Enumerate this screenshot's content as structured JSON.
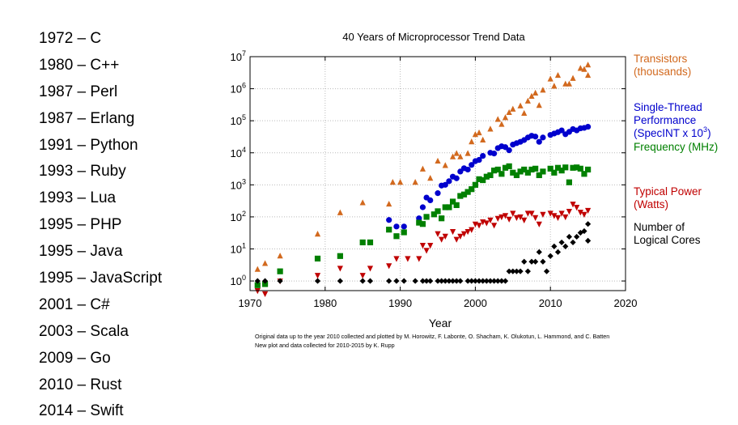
{
  "languages": [
    "1972 – C",
    "1980 – C++",
    "1987 – Perl",
    "1987 – Erlang",
    "1991 – Python",
    "1993 – Ruby",
    "1993 – Lua",
    "1995 – PHP",
    "1995 – Java",
    "1995 – JavaScript",
    "2001 – C#",
    "2003 – Scala",
    "2009 – Go",
    "2010 – Rust",
    "2014 – Swift"
  ],
  "chart_data": {
    "type": "scatter",
    "title": "40 Years of Microprocessor Trend Data",
    "xlabel": "Year",
    "ylabel": "",
    "xlim": [
      1970,
      2020
    ],
    "ylim": [
      0.5,
      10000000
    ],
    "y_scale": "log",
    "x_ticks": [
      "1970",
      "1980",
      "1990",
      "2000",
      "2010",
      "2020"
    ],
    "y_ticks": [
      {
        "base": "10",
        "exp": "0"
      },
      {
        "base": "10",
        "exp": "1"
      },
      {
        "base": "10",
        "exp": "2"
      },
      {
        "base": "10",
        "exp": "3"
      },
      {
        "base": "10",
        "exp": "4"
      },
      {
        "base": "10",
        "exp": "5"
      },
      {
        "base": "10",
        "exp": "6"
      },
      {
        "base": "10",
        "exp": "7"
      }
    ],
    "grid": true,
    "legend_position": "right",
    "footnote": [
      "Original data up to the year 2010 collected and plotted by M. Horowitz, F. Labonte, O. Shacham, K. Olukotun, L. Hammond, and C. Batten",
      "New plot and data collected for 2010-2015 by K. Rupp"
    ],
    "series": [
      {
        "name": "Transistors (thousands)",
        "legend_lines": [
          "Transistors",
          "(thousands)"
        ],
        "marker": "triangle-up",
        "color": "#d2691e",
        "points": [
          [
            1971,
            2.3
          ],
          [
            1972,
            3.5
          ],
          [
            1974,
            6
          ],
          [
            1979,
            29
          ],
          [
            1982,
            134
          ],
          [
            1985,
            275
          ],
          [
            1988.5,
            250
          ],
          [
            1989,
            1200
          ],
          [
            1990,
            1200
          ],
          [
            1992,
            1200
          ],
          [
            1993,
            3100
          ],
          [
            1994,
            1600
          ],
          [
            1995,
            5500
          ],
          [
            1996,
            4000
          ],
          [
            1997,
            7500
          ],
          [
            1997.5,
            9500
          ],
          [
            1998,
            7500
          ],
          [
            1999,
            9500
          ],
          [
            1999.5,
            22000
          ],
          [
            2000,
            37000
          ],
          [
            2000.5,
            42000
          ],
          [
            2001,
            25000
          ],
          [
            2002,
            55000
          ],
          [
            2003,
            110000
          ],
          [
            2003.5,
            77000
          ],
          [
            2004,
            125000
          ],
          [
            2004.5,
            180000
          ],
          [
            2005,
            230000
          ],
          [
            2006,
            290000
          ],
          [
            2006.5,
            170000
          ],
          [
            2007,
            410000
          ],
          [
            2007.5,
            580000
          ],
          [
            2008,
            730000
          ],
          [
            2008.5,
            300000
          ],
          [
            2009,
            900000
          ],
          [
            2010,
            2000000
          ],
          [
            2010.5,
            1200000
          ],
          [
            2011,
            2600000
          ],
          [
            2012,
            1400000
          ],
          [
            2012.5,
            1400000
          ],
          [
            2013,
            2100000
          ],
          [
            2014,
            4300000
          ],
          [
            2014.5,
            4000000
          ],
          [
            2015,
            5500000
          ],
          [
            2015,
            2600000
          ]
        ]
      },
      {
        "name": "Single-Thread Performance (SpecINT x 10^3)",
        "legend_lines": [
          "Single-Thread",
          "Performance",
          "(SpecINT x 10",
          "3",
          ")"
        ],
        "marker": "circle",
        "color": "#0000cd",
        "points": [
          [
            1988.5,
            80
          ],
          [
            1989.5,
            50
          ],
          [
            1990.5,
            50
          ],
          [
            1992.5,
            90
          ],
          [
            1993,
            200
          ],
          [
            1993.5,
            400
          ],
          [
            1994,
            330
          ],
          [
            1995,
            550
          ],
          [
            1995.5,
            950
          ],
          [
            1996,
            1000
          ],
          [
            1996.5,
            1300
          ],
          [
            1997,
            1800
          ],
          [
            1997.5,
            1600
          ],
          [
            1998,
            2600
          ],
          [
            1998.5,
            3300
          ],
          [
            1999,
            3000
          ],
          [
            1999.5,
            4200
          ],
          [
            2000,
            5500
          ],
          [
            2000.5,
            6000
          ],
          [
            2001,
            8000
          ],
          [
            2002,
            10000
          ],
          [
            2002.5,
            9500
          ],
          [
            2003,
            14000
          ],
          [
            2003.5,
            16000
          ],
          [
            2004,
            15000
          ],
          [
            2004.5,
            12000
          ],
          [
            2005,
            18000
          ],
          [
            2005.5,
            20000
          ],
          [
            2006,
            22000
          ],
          [
            2006.5,
            25000
          ],
          [
            2007,
            30000
          ],
          [
            2007.5,
            34000
          ],
          [
            2008,
            32000
          ],
          [
            2008.5,
            22000
          ],
          [
            2009,
            30000
          ],
          [
            2010,
            36000
          ],
          [
            2010.5,
            40000
          ],
          [
            2011,
            44000
          ],
          [
            2011.5,
            50000
          ],
          [
            2012,
            38000
          ],
          [
            2012.5,
            45000
          ],
          [
            2013,
            55000
          ],
          [
            2013.5,
            50000
          ],
          [
            2014,
            58000
          ],
          [
            2014.5,
            60000
          ],
          [
            2015,
            65000
          ]
        ]
      },
      {
        "name": "Frequency (MHz)",
        "legend_lines": [
          "Frequency (MHz)"
        ],
        "marker": "square",
        "color": "#008000",
        "points": [
          [
            1971,
            0.74
          ],
          [
            1972,
            0.8
          ],
          [
            1974,
            2
          ],
          [
            1979,
            5
          ],
          [
            1982,
            6
          ],
          [
            1985,
            16
          ],
          [
            1986,
            16
          ],
          [
            1988.5,
            40
          ],
          [
            1989.5,
            25
          ],
          [
            1990.5,
            33
          ],
          [
            1992.5,
            66
          ],
          [
            1993,
            60
          ],
          [
            1993.5,
            100
          ],
          [
            1994.5,
            120
          ],
          [
            1995,
            150
          ],
          [
            1995.5,
            90
          ],
          [
            1996,
            200
          ],
          [
            1996.5,
            200
          ],
          [
            1997,
            300
          ],
          [
            1997.5,
            233
          ],
          [
            1998,
            450
          ],
          [
            1998.5,
            500
          ],
          [
            1999,
            600
          ],
          [
            1999.5,
            733
          ],
          [
            2000,
            1000
          ],
          [
            2000.5,
            1500
          ],
          [
            2001,
            1400
          ],
          [
            2001.5,
            1800
          ],
          [
            2002,
            2000
          ],
          [
            2002.5,
            2800
          ],
          [
            2003,
            3000
          ],
          [
            2003.5,
            2200
          ],
          [
            2004,
            3400
          ],
          [
            2004.5,
            3800
          ],
          [
            2005,
            2400
          ],
          [
            2005.5,
            2000
          ],
          [
            2006,
            2600
          ],
          [
            2006.5,
            3000
          ],
          [
            2007,
            2400
          ],
          [
            2007.5,
            3000
          ],
          [
            2008,
            3200
          ],
          [
            2008.5,
            2000
          ],
          [
            2009,
            2600
          ],
          [
            2010,
            3200
          ],
          [
            2010.5,
            2400
          ],
          [
            2011,
            3400
          ],
          [
            2011.5,
            2800
          ],
          [
            2012,
            3500
          ],
          [
            2012.5,
            1200
          ],
          [
            2013,
            3400
          ],
          [
            2013.5,
            3500
          ],
          [
            2014,
            3200
          ],
          [
            2014.5,
            2200
          ],
          [
            2015,
            3000
          ]
        ]
      },
      {
        "name": "Typical Power (Watts)",
        "legend_lines": [
          "Typical Power",
          "(Watts)"
        ],
        "marker": "triangle-down",
        "color": "#c00000",
        "points": [
          [
            1971,
            0.5
          ],
          [
            1972,
            0.4
          ],
          [
            1974,
            1
          ],
          [
            1979,
            1.5
          ],
          [
            1982,
            2.5
          ],
          [
            1985,
            1.5
          ],
          [
            1986,
            2.5
          ],
          [
            1988.5,
            3
          ],
          [
            1989.5,
            5
          ],
          [
            1991,
            5
          ],
          [
            1992.5,
            5
          ],
          [
            1993,
            13
          ],
          [
            1993.5,
            9
          ],
          [
            1994,
            13
          ],
          [
            1995,
            30
          ],
          [
            1995.5,
            20
          ],
          [
            1996,
            25
          ],
          [
            1997,
            35
          ],
          [
            1997.5,
            20
          ],
          [
            1998,
            25
          ],
          [
            1998.5,
            30
          ],
          [
            1999,
            35
          ],
          [
            1999.5,
            40
          ],
          [
            2000,
            60
          ],
          [
            2000.5,
            55
          ],
          [
            2001,
            70
          ],
          [
            2001.5,
            65
          ],
          [
            2002,
            80
          ],
          [
            2002.5,
            55
          ],
          [
            2003,
            90
          ],
          [
            2003.5,
            100
          ],
          [
            2004,
            110
          ],
          [
            2004.5,
            85
          ],
          [
            2005,
            130
          ],
          [
            2005.5,
            95
          ],
          [
            2006,
            100
          ],
          [
            2006.5,
            80
          ],
          [
            2007,
            130
          ],
          [
            2007.5,
            130
          ],
          [
            2008,
            95
          ],
          [
            2008.5,
            60
          ],
          [
            2009,
            120
          ],
          [
            2010,
            130
          ],
          [
            2010.5,
            110
          ],
          [
            2011,
            95
          ],
          [
            2011.5,
            130
          ],
          [
            2012,
            100
          ],
          [
            2012.5,
            150
          ],
          [
            2013,
            250
          ],
          [
            2013.5,
            200
          ],
          [
            2014,
            140
          ],
          [
            2014.5,
            120
          ],
          [
            2015,
            160
          ]
        ]
      },
      {
        "name": "Number of Logical Cores",
        "legend_lines": [
          "Number of",
          "Logical Cores"
        ],
        "marker": "diamond",
        "color": "#000000",
        "points": [
          [
            1971,
            1
          ],
          [
            1972,
            1
          ],
          [
            1974,
            1
          ],
          [
            1979,
            1
          ],
          [
            1982,
            1
          ],
          [
            1985,
            1
          ],
          [
            1986,
            1
          ],
          [
            1988.5,
            1
          ],
          [
            1989.5,
            1
          ],
          [
            1990.5,
            1
          ],
          [
            1992,
            1
          ],
          [
            1993,
            1
          ],
          [
            1993.5,
            1
          ],
          [
            1994,
            1
          ],
          [
            1995,
            1
          ],
          [
            1995.5,
            1
          ],
          [
            1996,
            1
          ],
          [
            1996.5,
            1
          ],
          [
            1997,
            1
          ],
          [
            1997.5,
            1
          ],
          [
            1998,
            1
          ],
          [
            1999,
            1
          ],
          [
            1999.5,
            1
          ],
          [
            2000,
            1
          ],
          [
            2000.5,
            1
          ],
          [
            2001,
            1
          ],
          [
            2001.5,
            1
          ],
          [
            2002,
            1
          ],
          [
            2002.5,
            1
          ],
          [
            2003,
            1
          ],
          [
            2003.5,
            1
          ],
          [
            2004,
            1
          ],
          [
            2004.5,
            2
          ],
          [
            2005,
            2
          ],
          [
            2005.5,
            2
          ],
          [
            2006,
            2
          ],
          [
            2006.5,
            4
          ],
          [
            2007,
            2
          ],
          [
            2007.5,
            4
          ],
          [
            2008,
            4
          ],
          [
            2008.5,
            8
          ],
          [
            2009,
            4
          ],
          [
            2009.5,
            2
          ],
          [
            2010,
            6
          ],
          [
            2010.5,
            12
          ],
          [
            2011,
            8
          ],
          [
            2011.5,
            16
          ],
          [
            2012,
            12
          ],
          [
            2013,
            16
          ],
          [
            2013.5,
            24
          ],
          [
            2014,
            32
          ],
          [
            2014.5,
            36
          ],
          [
            2015,
            18
          ],
          [
            2015,
            60
          ],
          [
            2012.5,
            24
          ]
        ]
      }
    ]
  }
}
